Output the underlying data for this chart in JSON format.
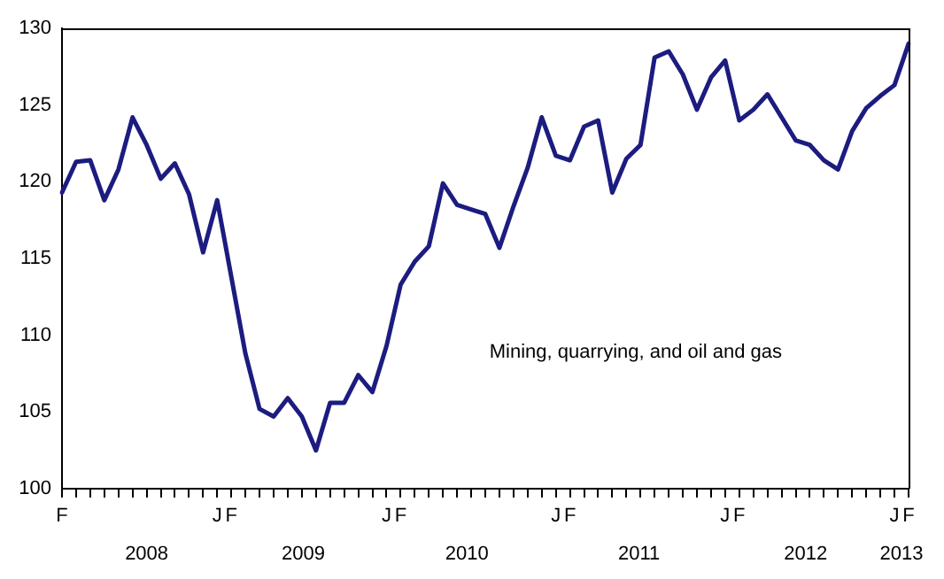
{
  "chart_data": {
    "type": "line",
    "categories": [
      "F",
      null,
      null,
      null,
      null,
      null,
      null,
      null,
      null,
      null,
      null,
      "J",
      "F",
      null,
      null,
      null,
      null,
      null,
      null,
      null,
      null,
      null,
      null,
      "J",
      "F",
      null,
      null,
      null,
      null,
      null,
      null,
      null,
      null,
      null,
      null,
      "J",
      "F",
      null,
      null,
      null,
      null,
      null,
      null,
      null,
      null,
      null,
      null,
      "J",
      "F",
      null,
      null,
      null,
      null,
      null,
      null,
      null,
      null,
      null,
      null,
      "J",
      "F"
    ],
    "series": [
      {
        "color": "#1c1c80",
        "values": [
          119.3,
          121.3,
          121.4,
          118.8,
          120.8,
          124.2,
          122.4,
          120.2,
          121.2,
          119.2,
          115.4,
          118.8,
          113.8,
          108.8,
          105.2,
          104.7,
          105.9,
          104.7,
          102.5,
          105.6,
          105.6,
          107.4,
          106.3,
          109.3,
          113.3,
          114.8,
          115.8,
          119.9,
          118.5,
          118.2,
          117.9,
          115.7,
          118.4,
          120.9,
          124.2,
          121.7,
          121.4,
          123.6,
          124.0,
          119.3,
          121.5,
          122.4,
          128.1,
          128.5,
          127.0,
          124.7,
          126.8,
          127.9,
          124.0,
          124.7,
          125.7,
          124.2,
          122.7,
          122.4,
          121.4,
          120.8,
          123.3,
          124.8,
          125.6,
          126.3,
          129.0
        ]
      }
    ],
    "ylim": [
      100,
      130
    ],
    "yticks": [
      100,
      105,
      110,
      115,
      120,
      125,
      130
    ],
    "grid": false,
    "legend": false,
    "marker": "none",
    "line_style": "solid",
    "annotations": [
      "2008",
      "2009",
      "2010",
      "2011",
      "2012",
      "2013",
      "Mining, quarrying, and oil and gas"
    ]
  }
}
